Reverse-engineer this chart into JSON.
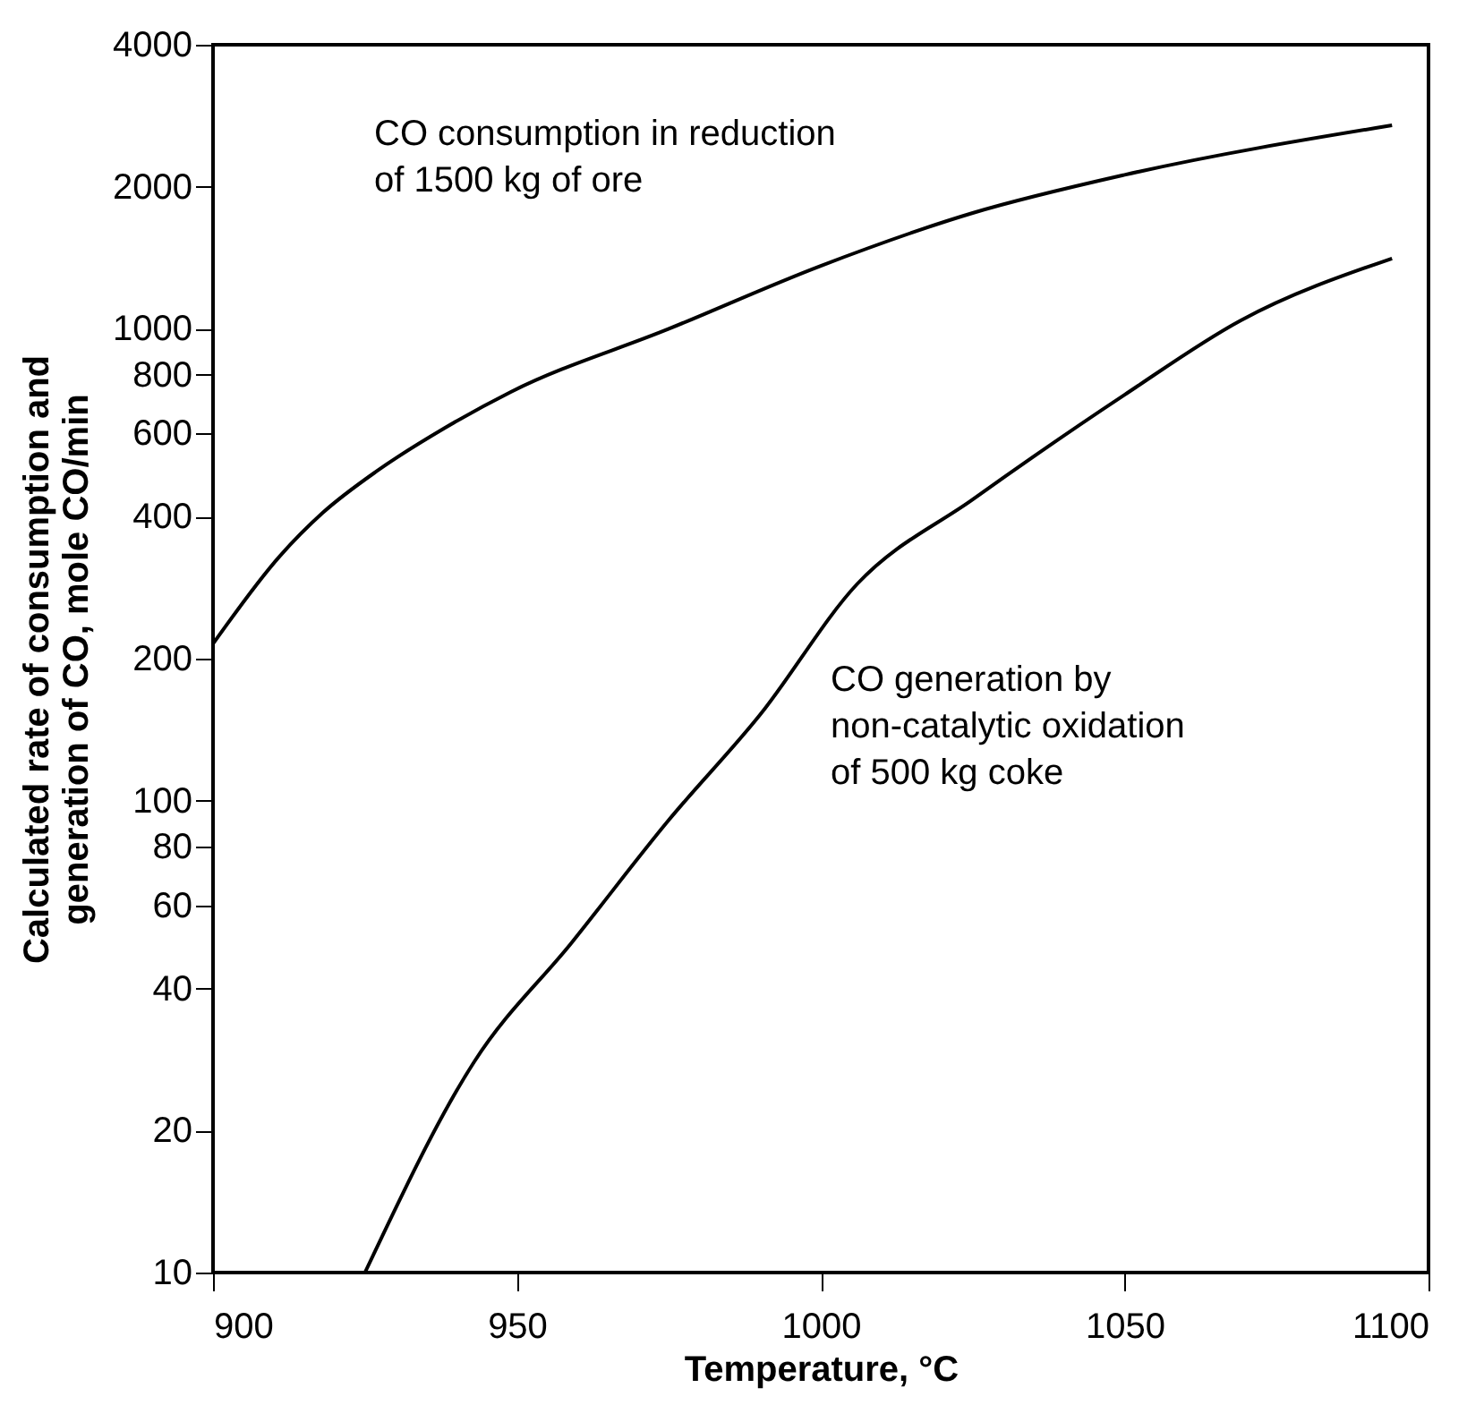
{
  "chart_data": {
    "type": "line",
    "xlabel": "Temperature, °C",
    "ylabel": "Calculated rate of consumption and\ngeneration of CO, mole CO/min",
    "log": "y",
    "marker": "none",
    "line_style": "solid",
    "xlim": [
      900,
      1100
    ],
    "xticks": [
      900,
      950,
      1000,
      1050,
      1100
    ],
    "ylim": [
      10,
      4000
    ],
    "yticks": [
      10,
      20,
      40,
      60,
      80,
      100,
      200,
      400,
      600,
      800,
      1000,
      2000,
      4000
    ],
    "series": [
      {
        "name": "CO consumption in reduction\nof 1500 kg of ore",
        "color": "#000000",
        "x": [
          900,
          911,
          918,
          927,
          938,
          949,
          975,
          1000,
          1025,
          1050,
          1094
        ],
        "values": [
          215,
          330,
          407,
          500,
          615,
          735,
          1000,
          1360,
          1760,
          2120,
          2700
        ]
      },
      {
        "name": "CO generation by\nnon-catalytic oxidation\nof 500 kg coke",
        "color": "#000000",
        "x": [
          925,
          943,
          959,
          975,
          990,
          1006,
          1025,
          1050,
          1069,
          1094
        ],
        "values": [
          10,
          28,
          50,
          91,
          152,
          288,
          435,
          725,
          1040,
          1410
        ]
      }
    ]
  }
}
